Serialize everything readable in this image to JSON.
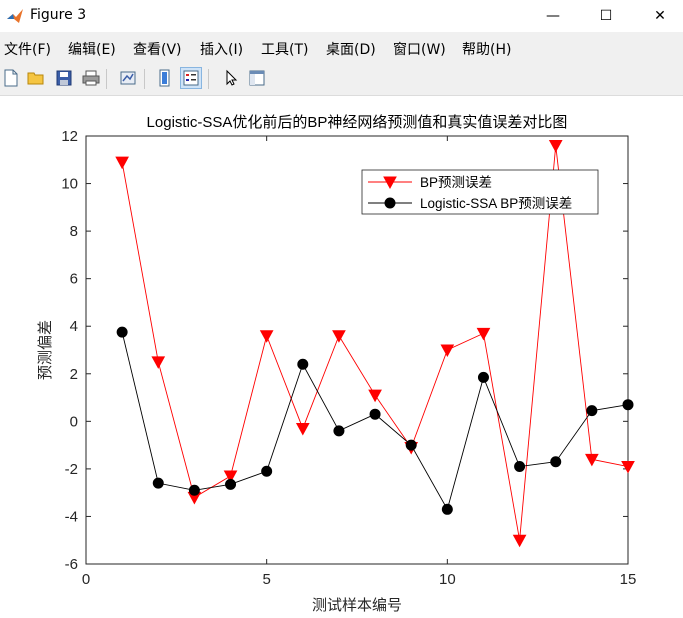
{
  "window": {
    "title": "Figure 3",
    "minimize_glyph": "—",
    "maximize_glyph": "☐",
    "close_glyph": "✕"
  },
  "menu": {
    "items": [
      {
        "label": "文件(F)"
      },
      {
        "label": "编辑(E)"
      },
      {
        "label": "查看(V)"
      },
      {
        "label": "插入(I)"
      },
      {
        "label": "工具(T)"
      },
      {
        "label": "桌面(D)"
      },
      {
        "label": "窗口(W)"
      },
      {
        "label": "帮助(H)"
      }
    ]
  },
  "toolbar": {
    "icons": [
      "new-figure-icon",
      "open-file-icon",
      "save-icon",
      "print-icon",
      "link-plot-icon",
      "colorbar-icon",
      "legend-icon",
      "pointer-icon",
      "property-inspector-icon"
    ]
  },
  "colors": {
    "bp": "#ff0000",
    "ssa": "#000000"
  },
  "chart_data": {
    "type": "line",
    "title": "Logistic-SSA优化前后的BP神经网络预测值和真实值误差对比图",
    "xlabel": "测试样本编号",
    "ylabel": "预测偏差",
    "xlim": [
      0,
      15
    ],
    "ylim": [
      -6,
      12
    ],
    "xticks": [
      0,
      5,
      10,
      15
    ],
    "yticks": [
      -6,
      -4,
      -2,
      0,
      2,
      4,
      6,
      8,
      10,
      12
    ],
    "legend_position": "top-right",
    "x": [
      1,
      2,
      3,
      4,
      5,
      6,
      7,
      8,
      9,
      10,
      11,
      12,
      13,
      14,
      15
    ],
    "series": [
      {
        "name": "BP预测误差",
        "marker": "down-triangle",
        "color": "#ff0000",
        "values": [
          10.9,
          2.5,
          -3.2,
          -2.3,
          3.6,
          -0.3,
          3.6,
          1.1,
          -1.1,
          3.0,
          3.7,
          -5.0,
          11.6,
          -1.6,
          -1.9
        ]
      },
      {
        "name": "Logistic-SSA BP预测误差",
        "marker": "circle",
        "color": "#000000",
        "values": [
          3.75,
          -2.6,
          -2.9,
          -2.65,
          -2.1,
          2.4,
          -0.4,
          0.3,
          -1.0,
          -3.7,
          1.85,
          -1.9,
          -1.7,
          0.45,
          0.7
        ]
      }
    ]
  }
}
